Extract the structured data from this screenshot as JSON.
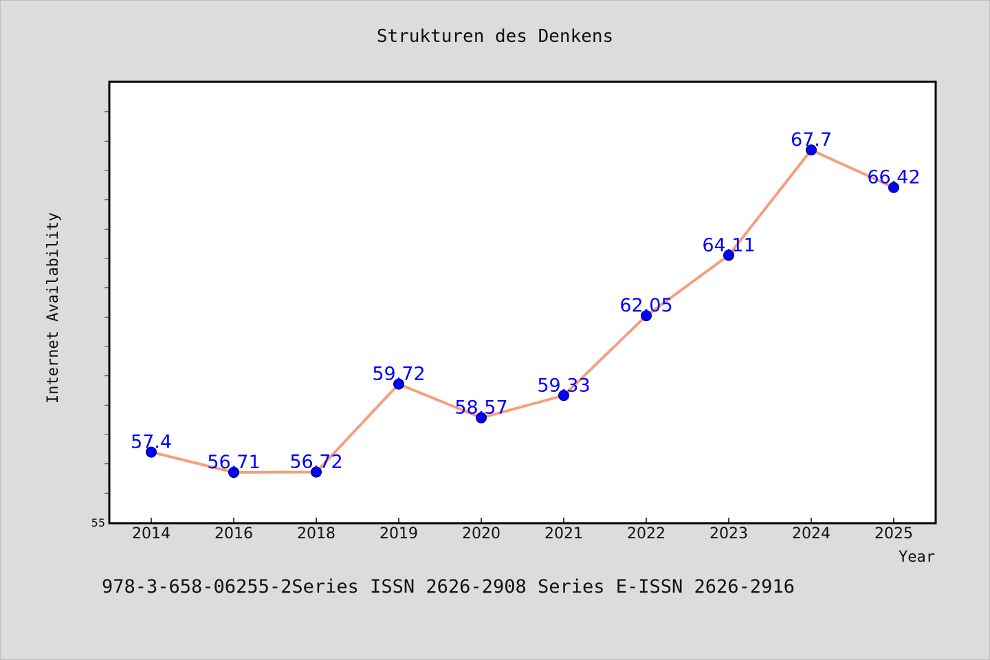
{
  "chart_data": {
    "type": "line",
    "title": "Strukturen des Denkens",
    "xlabel": "Year",
    "ylabel": "Internet Availability",
    "categories": [
      "2014",
      "2016",
      "2018",
      "2019",
      "2020",
      "2021",
      "2022",
      "2023",
      "2024",
      "2025"
    ],
    "series": [
      {
        "values": [
          57.4,
          56.71,
          56.72,
          59.72,
          58.57,
          59.33,
          62.05,
          64.11,
          67.7,
          66.42
        ],
        "labels": [
          "57.4",
          "56.71",
          "56.72",
          "59.72",
          "58.57",
          "59.33",
          "62.05",
          "64.11",
          "67.7",
          "66.42"
        ],
        "line_color": "#f4a07c",
        "marker_color": "#0000ff"
      }
    ],
    "ylim": [
      55,
      70
    ],
    "yticks_labeled": [
      "55"
    ],
    "grid": false,
    "legend": "none"
  },
  "footer": {
    "text": "978-3-658-06255-2Series ISSN 2626-2908 Series E-ISSN 2626-2916"
  }
}
